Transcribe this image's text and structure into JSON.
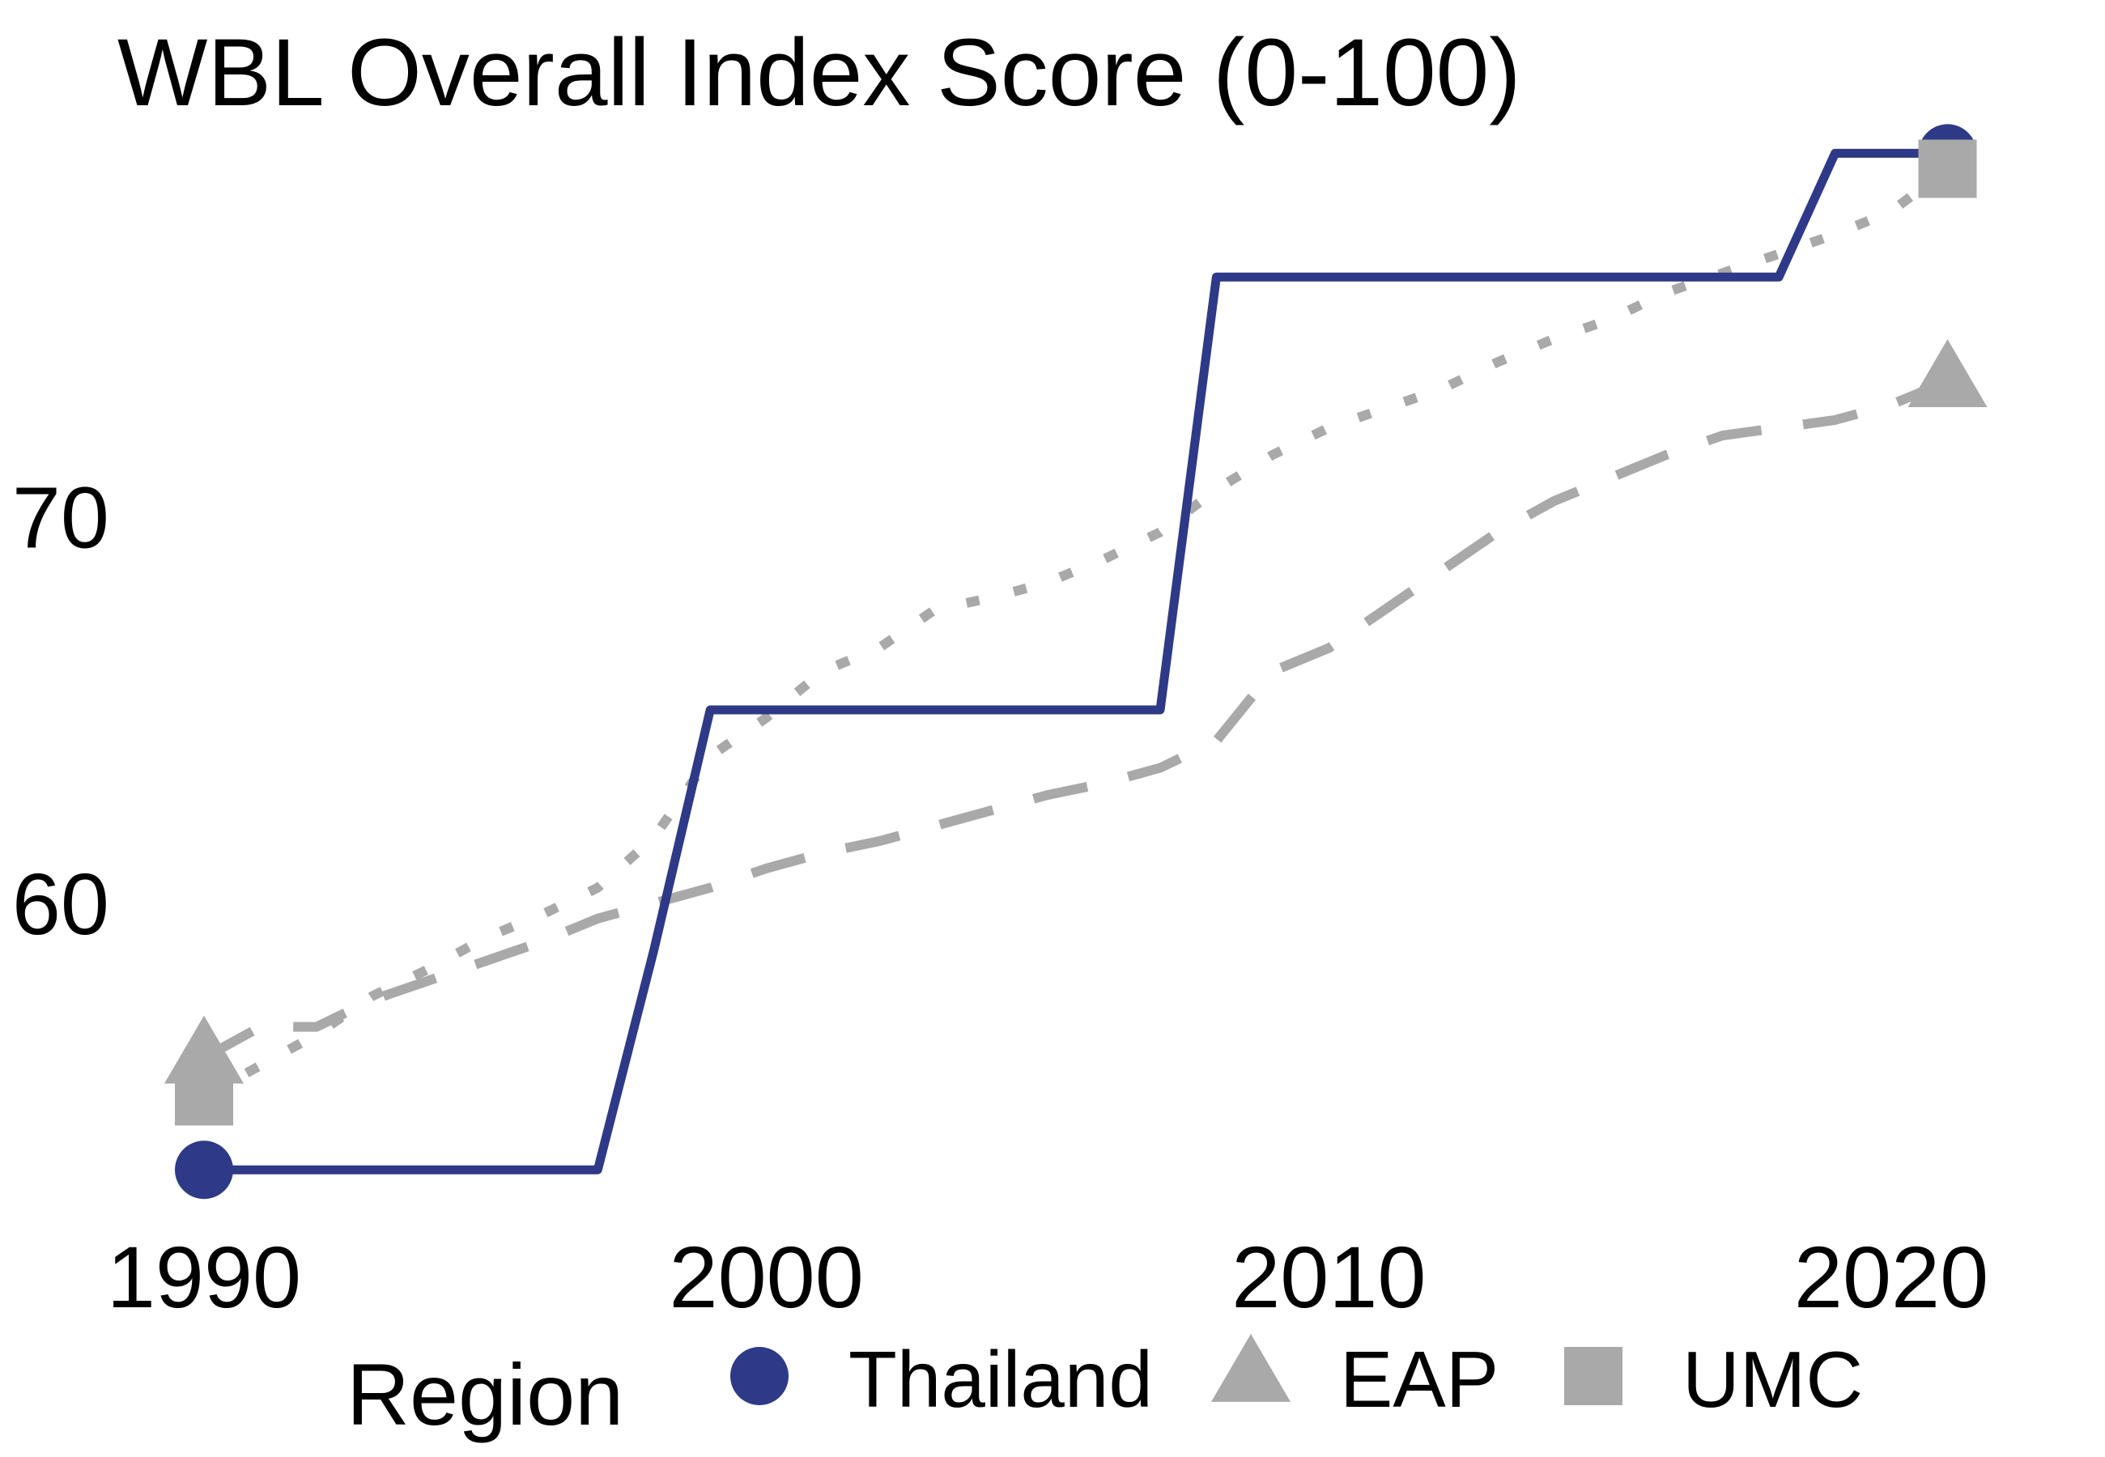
{
  "chart_data": {
    "type": "line",
    "title": "WBL Overall Index Score (0-100)",
    "subtitle": "",
    "xlabel": "",
    "ylabel": "",
    "xlim": [
      1990,
      2022
    ],
    "ylim": [
      53,
      81
    ],
    "x_ticks": [
      1990,
      2000,
      2010,
      2020
    ],
    "y_ticks": [
      60,
      70
    ],
    "grid": false,
    "legend": {
      "title": "Region",
      "position": "bottom",
      "items": [
        {
          "label": "Thailand",
          "marker": "circle",
          "color": "#2E3A87"
        },
        {
          "label": "EAP",
          "marker": "triangle",
          "color": "#A9A9A9"
        },
        {
          "label": "UMC",
          "marker": "square",
          "color": "#A9A9A9"
        }
      ]
    },
    "series": [
      {
        "name": "Thailand",
        "color": "#2E3A87",
        "style": "solid",
        "marker": "circle",
        "x": [
          1990,
          1997,
          1998,
          1999,
          2007,
          2008,
          2018,
          2019,
          2021
        ],
        "y": [
          53.1,
          53.1,
          58.8,
          65.0,
          65.0,
          76.2,
          76.2,
          79.4,
          79.4
        ]
      },
      {
        "name": "EAP",
        "color": "#A9A9A9",
        "style": "dashed",
        "marker": "triangle",
        "x": [
          1990,
          1991,
          1992,
          1993,
          1994,
          1995,
          1996,
          1997,
          1998,
          1999,
          2000,
          2001,
          2002,
          2003,
          2004,
          2005,
          2006,
          2007,
          2008,
          2009,
          2010,
          2011,
          2012,
          2013,
          2014,
          2015,
          2016,
          2017,
          2018,
          2019,
          2020,
          2021
        ],
        "y": [
          56.0,
          56.8,
          56.8,
          57.5,
          58.0,
          58.5,
          59.0,
          59.6,
          60.0,
          60.4,
          60.9,
          61.3,
          61.6,
          62.0,
          62.4,
          62.8,
          63.1,
          63.5,
          64.2,
          66.0,
          66.6,
          67.6,
          68.6,
          69.6,
          70.4,
          71.0,
          71.6,
          72.1,
          72.3,
          72.5,
          72.9,
          73.5
        ]
      },
      {
        "name": "UMC",
        "color": "#A9A9A9",
        "style": "dotted",
        "marker": "square",
        "x": [
          1990,
          1991,
          1992,
          1993,
          1994,
          1995,
          1996,
          1997,
          1998,
          1999,
          2000,
          2001,
          2002,
          2003,
          2004,
          2005,
          2006,
          2007,
          2008,
          2009,
          2010,
          2011,
          2012,
          2013,
          2014,
          2015,
          2016,
          2017,
          2018,
          2019,
          2020,
          2021
        ],
        "y": [
          55.0,
          55.8,
          56.6,
          57.6,
          58.3,
          59.1,
          59.7,
          60.4,
          61.7,
          63.8,
          64.8,
          66.0,
          66.6,
          67.6,
          67.9,
          68.3,
          68.9,
          69.6,
          70.7,
          71.6,
          72.3,
          72.8,
          73.3,
          74.0,
          74.6,
          75.1,
          75.8,
          76.3,
          76.8,
          77.3,
          77.9,
          79.0
        ]
      }
    ]
  }
}
